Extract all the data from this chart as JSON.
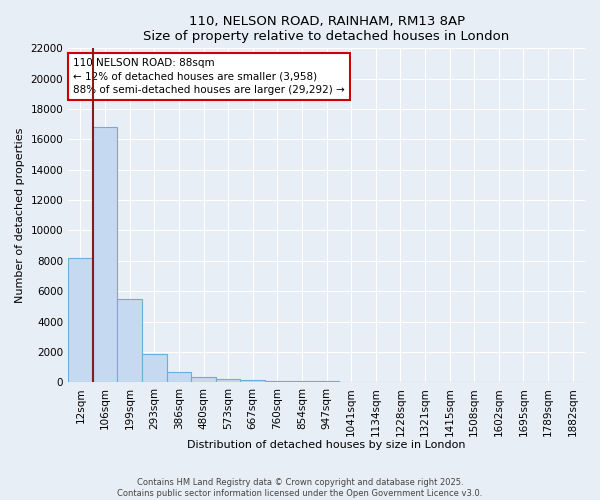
{
  "title1": "110, NELSON ROAD, RAINHAM, RM13 8AP",
  "title2": "Size of property relative to detached houses in London",
  "xlabel": "Distribution of detached houses by size in London",
  "ylabel": "Number of detached properties",
  "categories": [
    "12sqm",
    "106sqm",
    "199sqm",
    "293sqm",
    "386sqm",
    "480sqm",
    "573sqm",
    "667sqm",
    "760sqm",
    "854sqm",
    "947sqm",
    "1041sqm",
    "1134sqm",
    "1228sqm",
    "1321sqm",
    "1415sqm",
    "1508sqm",
    "1602sqm",
    "1695sqm",
    "1789sqm",
    "1882sqm"
  ],
  "values": [
    8200,
    16800,
    5500,
    1850,
    650,
    350,
    200,
    120,
    80,
    60,
    50,
    40,
    30,
    25,
    20,
    15,
    10,
    8,
    5,
    4,
    3
  ],
  "bar_color": "#c5d9f0",
  "bar_edge_color": "#6baed6",
  "background_color": "#e8eef5",
  "grid_color": "#ffffff",
  "vline_color": "#8b1a1a",
  "annotation_text": "110 NELSON ROAD: 88sqm\n← 12% of detached houses are smaller (3,958)\n88% of semi-detached houses are larger (29,292) →",
  "annotation_box_color": "#ffffff",
  "annotation_edge_color": "#cc0000",
  "ylim": [
    0,
    22000
  ],
  "yticks": [
    0,
    2000,
    4000,
    6000,
    8000,
    10000,
    12000,
    14000,
    16000,
    18000,
    20000,
    22000
  ],
  "footer1": "Contains HM Land Registry data © Crown copyright and database right 2025.",
  "footer2": "Contains public sector information licensed under the Open Government Licence v3.0."
}
